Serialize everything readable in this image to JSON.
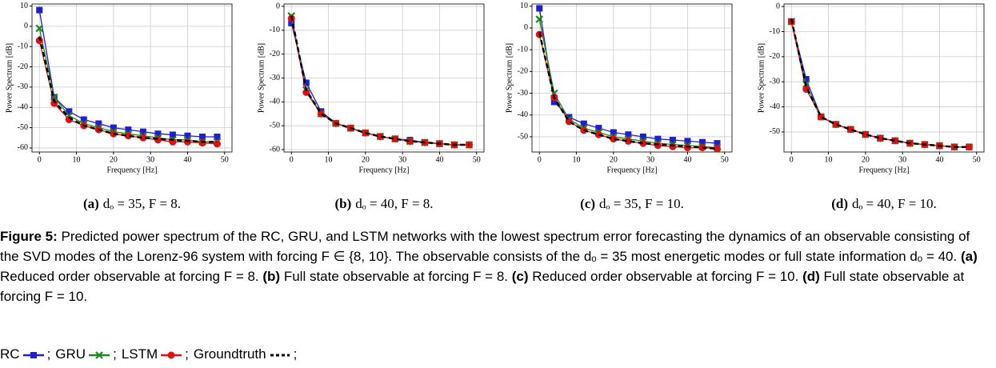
{
  "chart_data": [
    {
      "type": "line",
      "label": "(a)",
      "subcaption": "dₒ = 35, F = 8.",
      "xlabel": "Frequency [Hz]",
      "ylabel": "Power Spectrum [dB]",
      "x": [
        0,
        4,
        8,
        12,
        16,
        20,
        24,
        28,
        32,
        36,
        40,
        44,
        48
      ],
      "xlim": [
        -2,
        52
      ],
      "xticks": [
        0,
        10,
        20,
        30,
        40,
        50
      ],
      "ylim": [
        -62,
        11
      ],
      "yticks": [
        -60,
        -50,
        -40,
        -30,
        -20,
        -10,
        0,
        10
      ],
      "grid": true,
      "series": [
        {
          "name": "RC",
          "color": "#1f1fd0",
          "values": [
            8,
            -35,
            -42,
            -46,
            -48,
            -50,
            -51,
            -52,
            -53,
            -53.5,
            -54,
            -54.5,
            -54.5
          ]
        },
        {
          "name": "GRU",
          "color": "#1a8a1a",
          "values": [
            -1,
            -35,
            -44,
            -48,
            -50,
            -52,
            -53,
            -54,
            -55,
            -56,
            -56,
            -57,
            -57
          ]
        },
        {
          "name": "LSTM",
          "color": "#e01010",
          "values": [
            -7,
            -38,
            -46,
            -49,
            -51,
            -53,
            -54,
            -55,
            -56,
            -57,
            -57,
            -57.5,
            -58
          ]
        },
        {
          "name": "Groundtruth",
          "color": "#000000",
          "values": [
            -5,
            -37,
            -45,
            -49,
            -51,
            -53,
            -54,
            -55,
            -55.5,
            -56,
            -56.5,
            -57,
            -57
          ]
        }
      ]
    },
    {
      "type": "line",
      "label": "(b)",
      "subcaption": "dₒ = 40, F = 8.",
      "xlabel": "Frequency [Hz]",
      "ylabel": "Power Spectrum [dB]",
      "x": [
        0,
        4,
        8,
        12,
        16,
        20,
        24,
        28,
        32,
        36,
        40,
        44,
        48
      ],
      "xlim": [
        -2,
        52
      ],
      "xticks": [
        0,
        10,
        20,
        30,
        40,
        50
      ],
      "ylim": [
        -61,
        1
      ],
      "yticks": [
        -60,
        -50,
        -40,
        -30,
        -20,
        -10,
        0
      ],
      "grid": true,
      "series": [
        {
          "name": "RC",
          "color": "#1f1fd0",
          "values": [
            -7,
            -32,
            -44,
            -49,
            -51,
            -53,
            -54.5,
            -55.5,
            -56,
            -57,
            -57.5,
            -58,
            -58
          ]
        },
        {
          "name": "GRU",
          "color": "#1a8a1a",
          "values": [
            -4,
            -35,
            -45,
            -49,
            -51,
            -53,
            -54.5,
            -55.5,
            -56.5,
            -57,
            -57.5,
            -58,
            -58
          ]
        },
        {
          "name": "LSTM",
          "color": "#e01010",
          "values": [
            -5,
            -36,
            -45,
            -49,
            -51,
            -53,
            -54.5,
            -55.5,
            -56.5,
            -57,
            -57.5,
            -58,
            -58
          ]
        },
        {
          "name": "Groundtruth",
          "color": "#000000",
          "values": [
            -4,
            -35,
            -45,
            -49,
            -51,
            -53,
            -54.5,
            -55.5,
            -56.5,
            -57,
            -57.5,
            -58,
            -58
          ]
        }
      ]
    },
    {
      "type": "line",
      "label": "(c)",
      "subcaption": "dₒ = 35, F = 10.",
      "xlabel": "Frequency [Hz]",
      "ylabel": "Power Spectrum [dB]",
      "x": [
        0,
        4,
        8,
        12,
        16,
        20,
        24,
        28,
        32,
        36,
        40,
        44,
        48
      ],
      "xlim": [
        -2,
        52
      ],
      "xticks": [
        0,
        10,
        20,
        30,
        40,
        50
      ],
      "ylim": [
        -57,
        11
      ],
      "yticks": [
        -50,
        -40,
        -30,
        -20,
        -10,
        0,
        10
      ],
      "grid": true,
      "series": [
        {
          "name": "RC",
          "color": "#1f1fd0",
          "values": [
            9,
            -34,
            -41,
            -44,
            -46,
            -48,
            -49,
            -50,
            -51,
            -51.5,
            -52,
            -52.5,
            -53
          ]
        },
        {
          "name": "GRU",
          "color": "#1a8a1a",
          "values": [
            4,
            -30,
            -42,
            -46,
            -48,
            -50,
            -51,
            -52,
            -53,
            -53.5,
            -54,
            -54.5,
            -55
          ]
        },
        {
          "name": "LSTM",
          "color": "#e01010",
          "values": [
            -3,
            -32,
            -43,
            -47,
            -49,
            -51,
            -52,
            -53,
            -54,
            -54.5,
            -55,
            -55,
            -55.5
          ]
        },
        {
          "name": "Groundtruth",
          "color": "#000000",
          "values": [
            -2,
            -32,
            -43,
            -47,
            -49,
            -51,
            -52,
            -53,
            -53.5,
            -54,
            -54.5,
            -55,
            -55.5
          ]
        }
      ]
    },
    {
      "type": "line",
      "label": "(d)",
      "subcaption": "dₒ = 40, F = 10.",
      "xlabel": "Frequency [Hz]",
      "ylabel": "Power Spectrum [dB]",
      "x": [
        0,
        4,
        8,
        12,
        16,
        20,
        24,
        28,
        32,
        36,
        40,
        44,
        48
      ],
      "xlim": [
        -2,
        52
      ],
      "xticks": [
        0,
        10,
        20,
        30,
        40,
        50
      ],
      "ylim": [
        -58,
        1
      ],
      "yticks": [
        -50,
        -40,
        -30,
        -20,
        -10,
        0
      ],
      "grid": true,
      "series": [
        {
          "name": "RC",
          "color": "#1f1fd0",
          "values": [
            -6,
            -29,
            -44,
            -47,
            -49,
            -51,
            -52.5,
            -53.5,
            -54.5,
            -55,
            -55.5,
            -56,
            -56
          ]
        },
        {
          "name": "GRU",
          "color": "#1a8a1a",
          "values": [
            -6,
            -31,
            -44,
            -47,
            -49,
            -51,
            -52.5,
            -53.5,
            -54.5,
            -55,
            -55.5,
            -56,
            -56
          ]
        },
        {
          "name": "LSTM",
          "color": "#e01010",
          "values": [
            -6,
            -33,
            -44,
            -47,
            -49,
            -51,
            -52.5,
            -53.5,
            -54.5,
            -55,
            -55.5,
            -56,
            -56
          ]
        },
        {
          "name": "Groundtruth",
          "color": "#000000",
          "values": [
            -5,
            -32,
            -44,
            -47,
            -49,
            -51,
            -52.5,
            -53.5,
            -54.5,
            -55,
            -55.5,
            -56,
            -56
          ]
        }
      ]
    }
  ],
  "caption": [
    {
      "text": "Figure 5:",
      "bold": true
    },
    {
      "text": " Predicted power spectrum of the RC, GRU, and LSTM networks with the lowest spectrum error forecasting the dynamics of an observable consisting of the SVD modes of the Lorenz-96 system with forcing F ∈ {8, 10}. The observable consists of the dₒ = 35 most energetic modes or full state information dₒ = 40. "
    },
    {
      "text": "(a)",
      "bold": true
    },
    {
      "text": " Reduced order observable at forcing F = 8. "
    },
    {
      "text": "(b)",
      "bold": true
    },
    {
      "text": " Full state observable at forcing F = 8. "
    },
    {
      "text": "(c)",
      "bold": true
    },
    {
      "text": " Reduced order observable at forcing F = 10. "
    },
    {
      "text": "(d)",
      "bold": true
    },
    {
      "text": " Full state observable at forcing F = 10."
    }
  ],
  "legend_separator": ";"
}
